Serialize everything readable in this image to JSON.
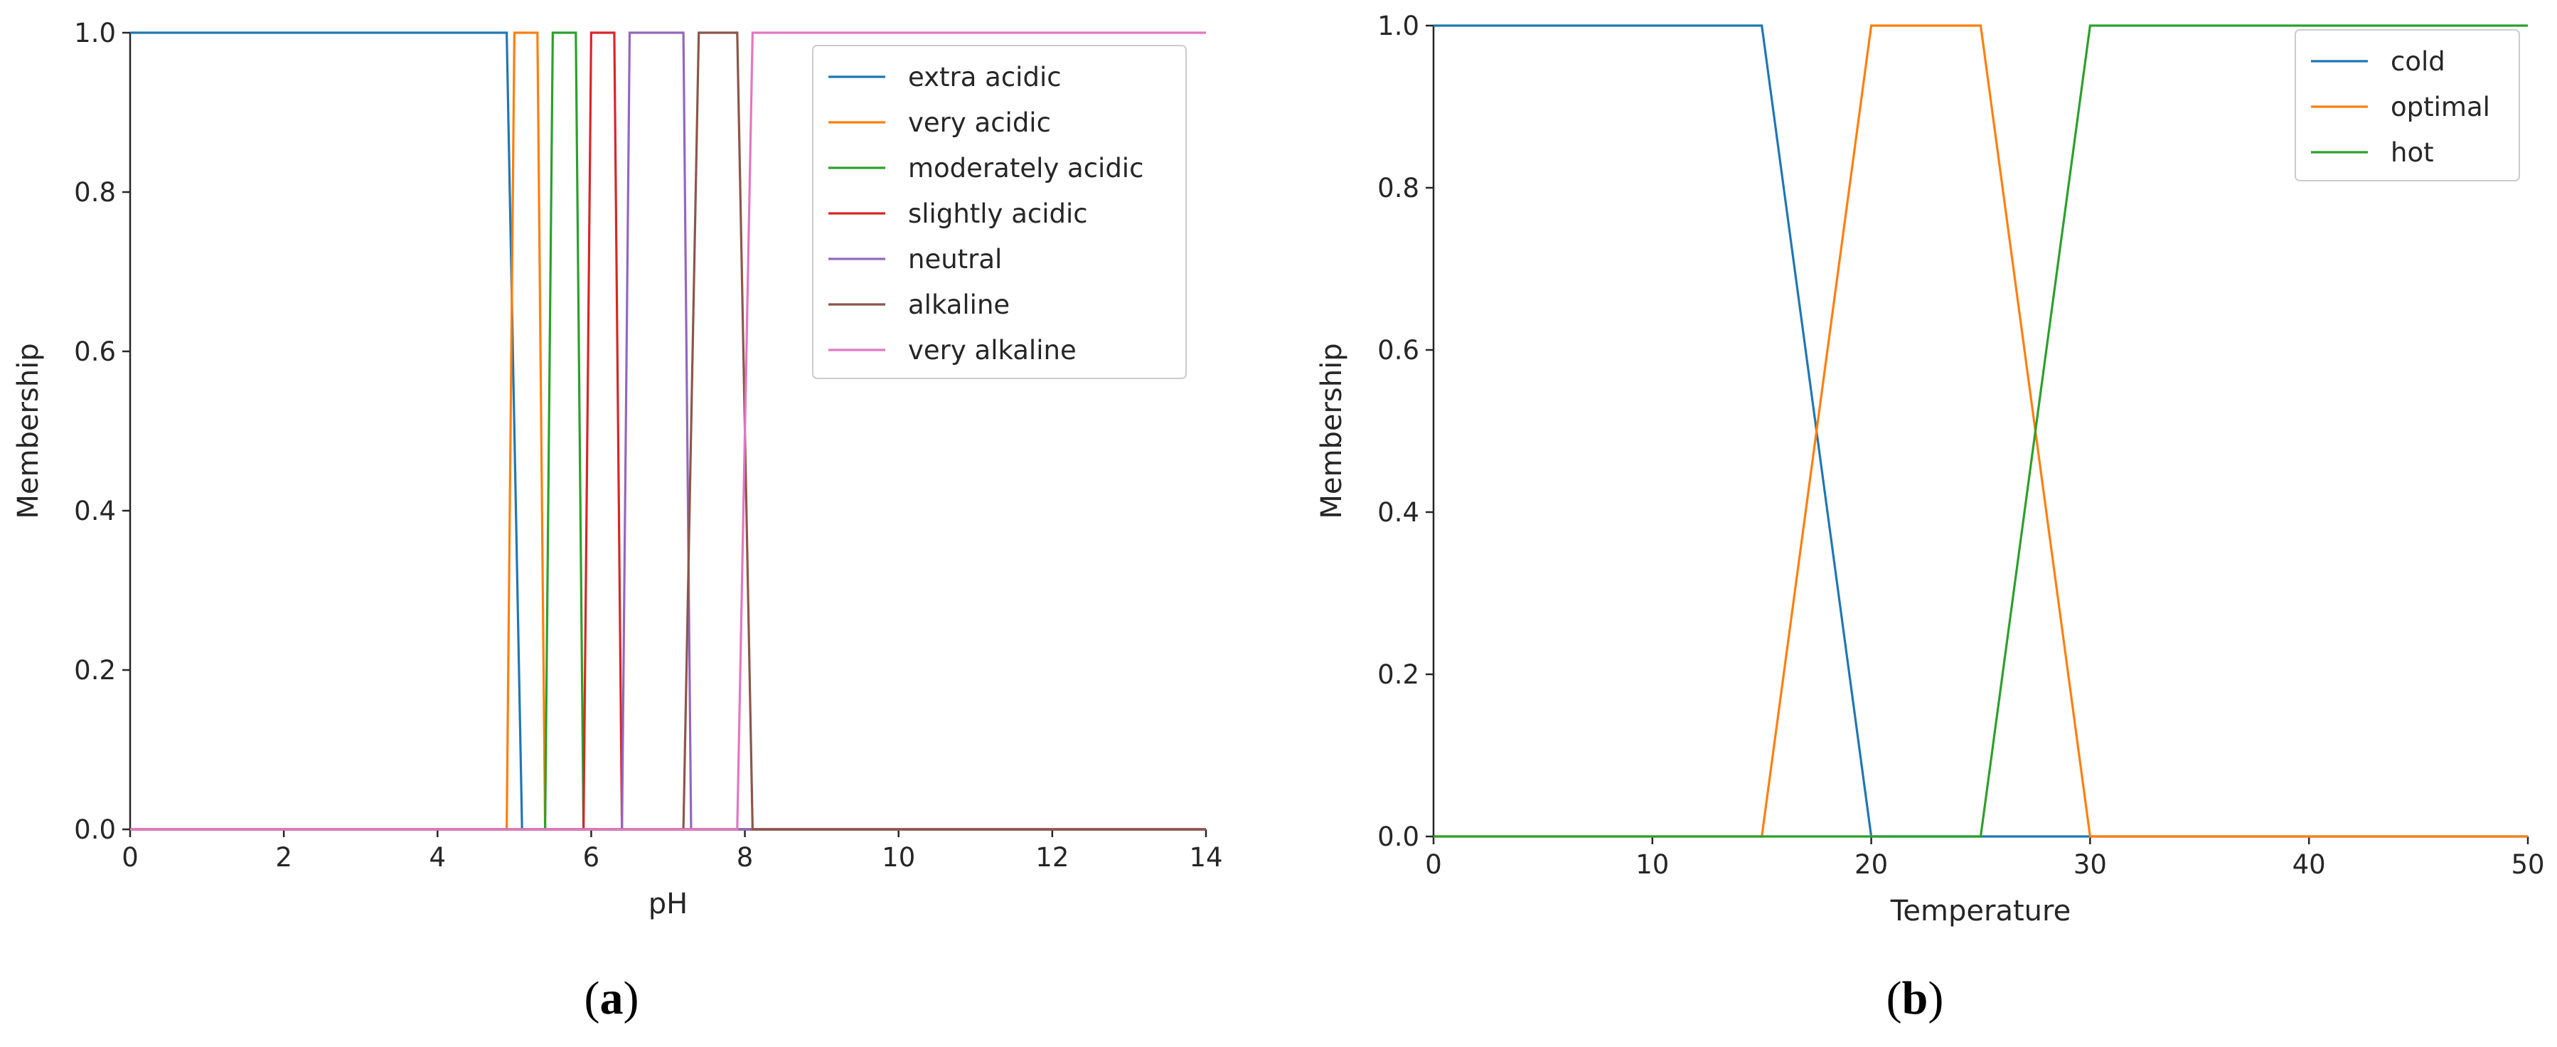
{
  "chart_data": [
    {
      "type": "line",
      "panel_label": "(a)",
      "panel_letter": "a",
      "xlabel": "pH",
      "ylabel": "Membership",
      "xlim": [
        0,
        14
      ],
      "ylim": [
        0,
        1.0
      ],
      "xticks": [
        0,
        2,
        4,
        6,
        8,
        10,
        12,
        14
      ],
      "xtick_labels": [
        "0",
        "2",
        "4",
        "6",
        "8",
        "10",
        "12",
        "14"
      ],
      "yticks": [
        0.0,
        0.2,
        0.4,
        0.6,
        0.8,
        1.0
      ],
      "ytick_labels": [
        "0.0",
        "0.2",
        "0.4",
        "0.6",
        "0.8",
        "1.0"
      ],
      "grid": false,
      "legend_position": "top-right",
      "series": [
        {
          "name": "extra acidic",
          "color": "#1f77b4",
          "points": [
            [
              0,
              1
            ],
            [
              4.9,
              1
            ],
            [
              5.1,
              0
            ],
            [
              14,
              0
            ]
          ]
        },
        {
          "name": "very acidic",
          "color": "#ff7f0e",
          "points": [
            [
              0,
              0
            ],
            [
              4.9,
              0
            ],
            [
              5.0,
              1
            ],
            [
              5.3,
              1
            ],
            [
              5.4,
              0
            ],
            [
              14,
              0
            ]
          ]
        },
        {
          "name": "moderately acidic",
          "color": "#2ca02c",
          "points": [
            [
              0,
              0
            ],
            [
              5.4,
              0
            ],
            [
              5.5,
              1
            ],
            [
              5.8,
              1
            ],
            [
              5.9,
              0
            ],
            [
              14,
              0
            ]
          ]
        },
        {
          "name": "slightly acidic",
          "color": "#d62728",
          "points": [
            [
              0,
              0
            ],
            [
              5.9,
              0
            ],
            [
              6.0,
              1
            ],
            [
              6.3,
              1
            ],
            [
              6.4,
              0
            ],
            [
              14,
              0
            ]
          ]
        },
        {
          "name": "neutral",
          "color": "#9467bd",
          "points": [
            [
              0,
              0
            ],
            [
              6.4,
              0
            ],
            [
              6.5,
              1
            ],
            [
              7.2,
              1
            ],
            [
              7.3,
              0
            ],
            [
              14,
              0
            ]
          ]
        },
        {
          "name": "alkaline",
          "color": "#8c564b",
          "points": [
            [
              0,
              0
            ],
            [
              7.2,
              0
            ],
            [
              7.4,
              1
            ],
            [
              7.9,
              1
            ],
            [
              8.1,
              0
            ],
            [
              14,
              0
            ]
          ]
        },
        {
          "name": "very alkaline",
          "color": "#e377c2",
          "points": [
            [
              0,
              0
            ],
            [
              7.9,
              0
            ],
            [
              8.1,
              1
            ],
            [
              14,
              1
            ]
          ]
        }
      ]
    },
    {
      "type": "line",
      "panel_label": "(b)",
      "panel_letter": "b",
      "xlabel": "Temperature",
      "ylabel": "Membership",
      "xlim": [
        0,
        50
      ],
      "ylim": [
        0,
        1.0
      ],
      "xticks": [
        0,
        10,
        20,
        30,
        40,
        50
      ],
      "xtick_labels": [
        "0",
        "10",
        "20",
        "30",
        "40",
        "50"
      ],
      "yticks": [
        0.0,
        0.2,
        0.4,
        0.6,
        0.8,
        1.0
      ],
      "ytick_labels": [
        "0.0",
        "0.2",
        "0.4",
        "0.6",
        "0.8",
        "1.0"
      ],
      "grid": false,
      "legend_position": "top-right",
      "series": [
        {
          "name": "cold",
          "color": "#1f77b4",
          "points": [
            [
              0,
              1
            ],
            [
              15,
              1
            ],
            [
              20,
              0
            ],
            [
              50,
              0
            ]
          ]
        },
        {
          "name": "optimal",
          "color": "#ff7f0e",
          "points": [
            [
              0,
              0
            ],
            [
              15,
              0
            ],
            [
              20,
              1
            ],
            [
              25,
              1
            ],
            [
              30,
              0
            ],
            [
              50,
              0
            ]
          ]
        },
        {
          "name": "hot",
          "color": "#2ca02c",
          "points": [
            [
              0,
              0
            ],
            [
              25,
              0
            ],
            [
              30,
              1
            ],
            [
              50,
              1
            ]
          ]
        }
      ]
    }
  ]
}
